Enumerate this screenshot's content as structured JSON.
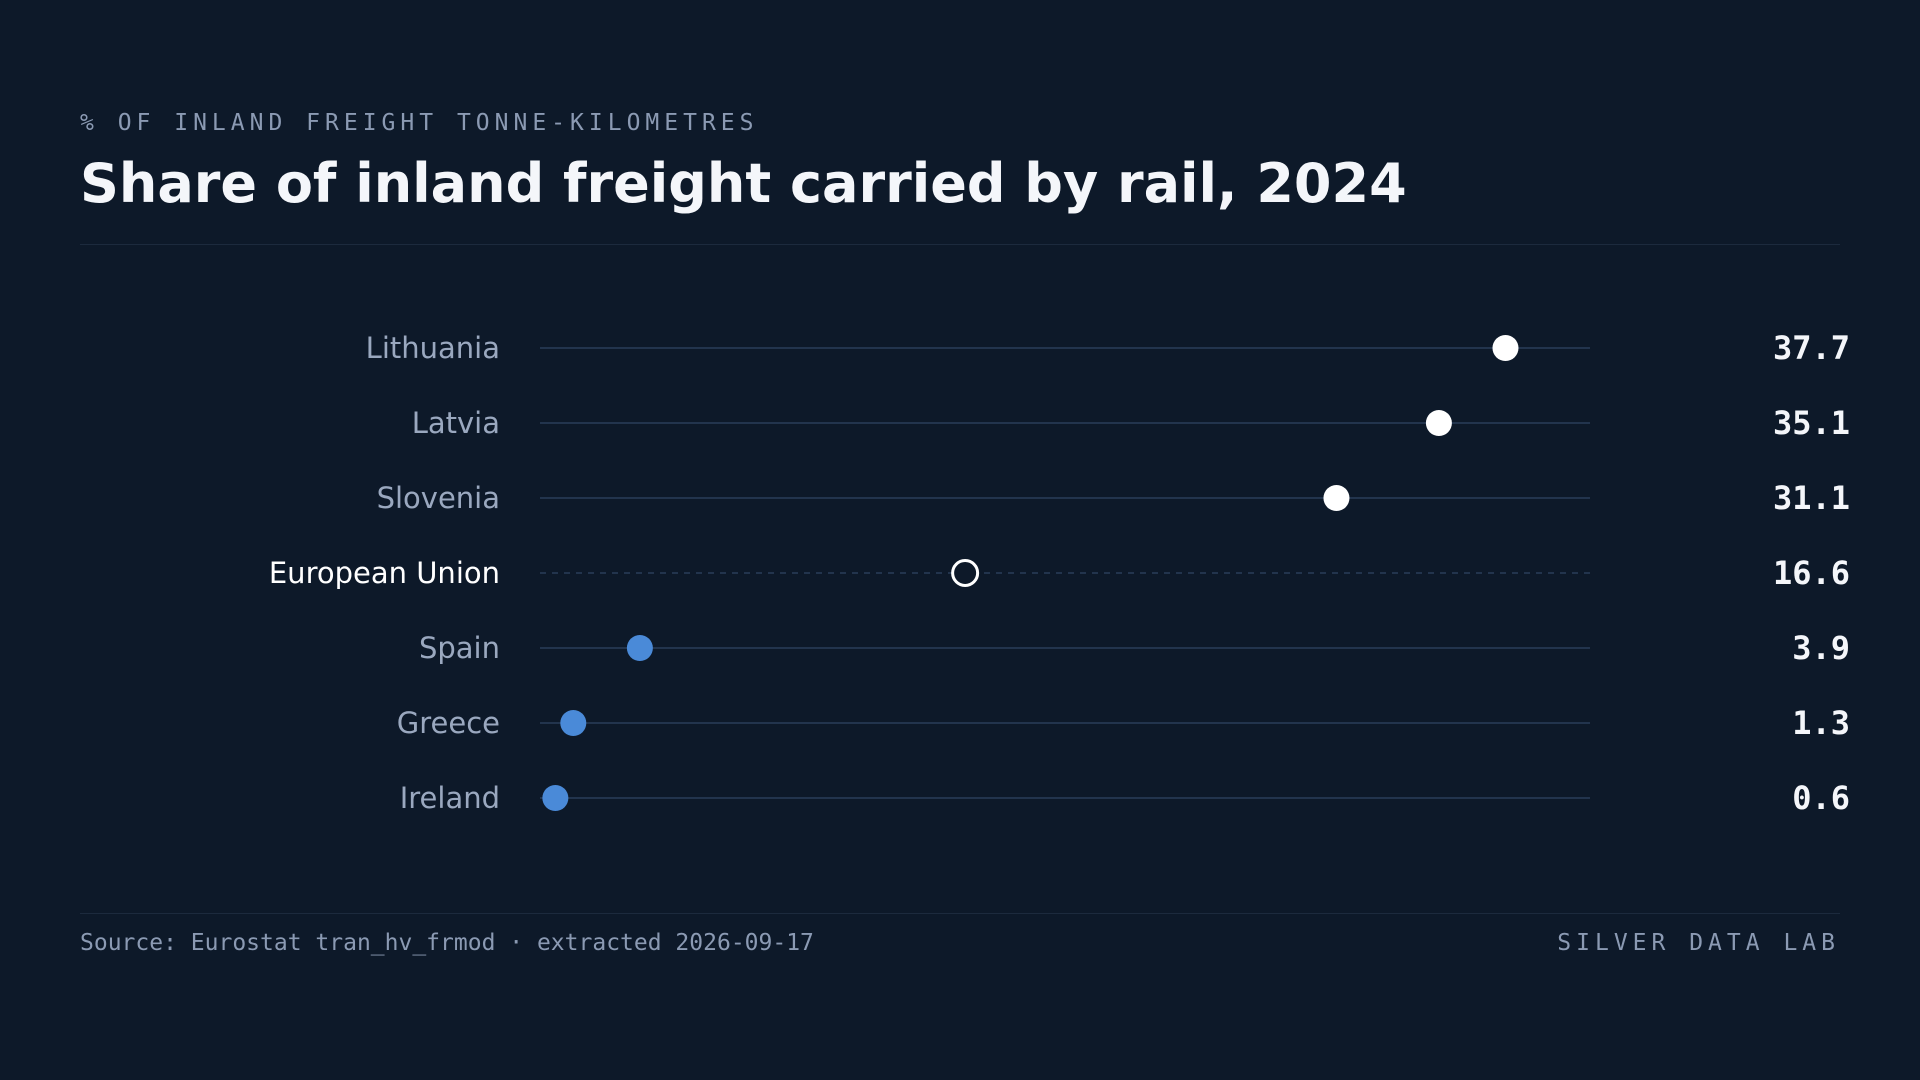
{
  "header": {
    "kicker": "% OF INLAND FREIGHT TONNE-KILOMETRES",
    "title": "Share of inland freight carried by rail, 2024"
  },
  "footer": {
    "source": "Source: Eurostat tran_hv_frmod · extracted 2026-09-17",
    "brand": "SILVER DATA LAB"
  },
  "colors": {
    "background": "#0d1929",
    "high_dot": "#ffffff",
    "low_dot": "#4a8ad8",
    "reference_ring": "#ffffff",
    "label": "#9aa8bf",
    "reference_label": "#ffffff",
    "value": "#f4f6fa",
    "track": "#22344d"
  },
  "chart_data": {
    "type": "scatter",
    "xlim": [
      0,
      41
    ],
    "grid": false,
    "categories": [
      "Lithuania",
      "Latvia",
      "Slovenia",
      "European Union",
      "Spain",
      "Greece",
      "Ireland"
    ],
    "values": [
      37.7,
      35.1,
      31.1,
      16.6,
      3.9,
      1.3,
      0.6
    ],
    "value_labels": [
      "37.7",
      "35.1",
      "31.1",
      "16.6",
      "3.9",
      "1.3",
      "0.6"
    ],
    "reference": "European Union"
  }
}
